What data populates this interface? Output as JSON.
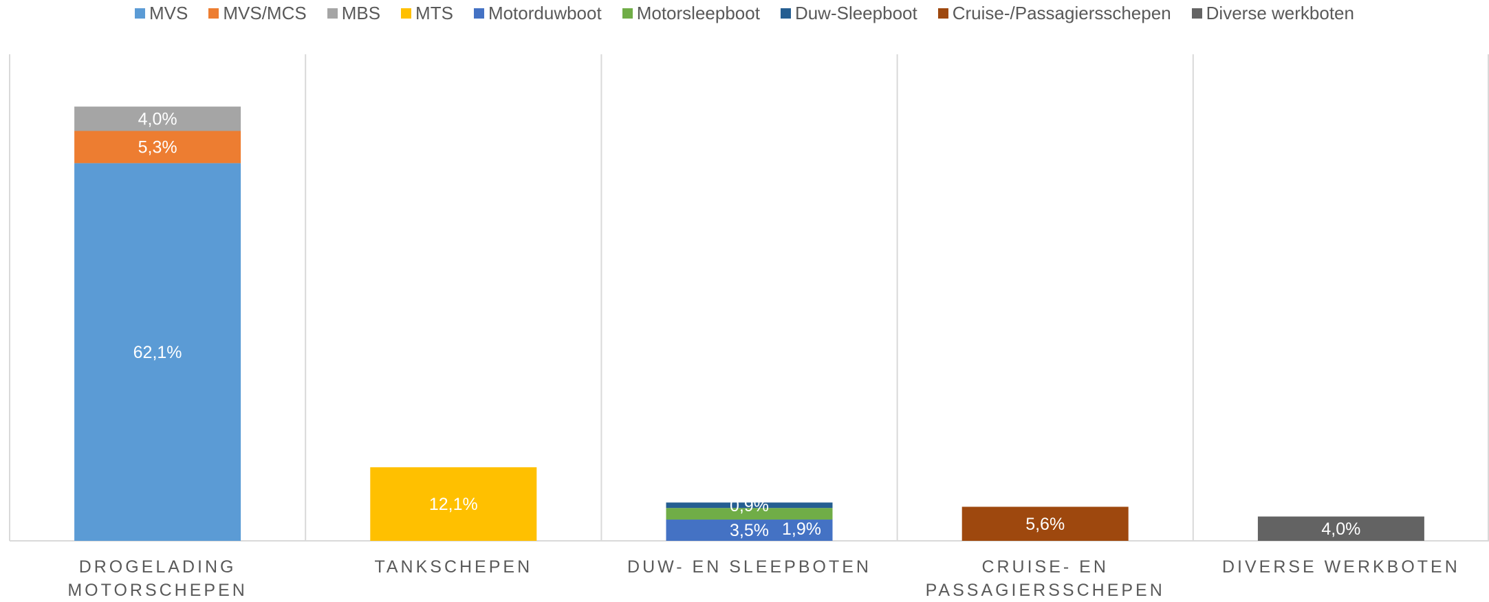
{
  "chart_data": {
    "type": "stacked_bar",
    "categories": [
      "DROGELADING MOTORSCHEPEN",
      "TANKSCHEPEN",
      "DUW- EN SLEEPBOTEN",
      "CRUISE- EN PASSAGIERSSCHEPEN",
      "DIVERSE WERKBOTEN"
    ],
    "ylim": [
      0,
      80
    ],
    "series": [
      {
        "name": "MVS",
        "color": "#5b9bd5",
        "values": [
          62.1,
          null,
          null,
          null,
          null
        ],
        "value_labels": [
          "62,1%",
          null,
          null,
          null,
          null
        ]
      },
      {
        "name": "MVS/MCS",
        "color": "#ed7d31",
        "values": [
          5.3,
          null,
          null,
          null,
          null
        ],
        "value_labels": [
          "5,3%",
          null,
          null,
          null,
          null
        ]
      },
      {
        "name": "MBS",
        "color": "#a5a5a5",
        "values": [
          4.0,
          null,
          null,
          null,
          null
        ],
        "value_labels": [
          "4,0%",
          null,
          null,
          null,
          null
        ]
      },
      {
        "name": "MTS",
        "color": "#ffc000",
        "values": [
          null,
          12.1,
          null,
          null,
          null
        ],
        "value_labels": [
          null,
          "12,1%",
          null,
          null,
          null
        ]
      },
      {
        "name": "Motorduwboot",
        "color": "#4472c4",
        "values": [
          null,
          null,
          3.5,
          null,
          null
        ],
        "value_labels": [
          null,
          null,
          "3,5%",
          null,
          null
        ]
      },
      {
        "name": "Motorsleepboot",
        "color": "#70ad47",
        "values": [
          null,
          null,
          1.9,
          null,
          null
        ],
        "value_labels": [
          null,
          null,
          "1,9%",
          null,
          null
        ]
      },
      {
        "name": "Duw-Sleepboot",
        "color": "#255e91",
        "values": [
          null,
          null,
          0.9,
          null,
          null
        ],
        "value_labels": [
          null,
          null,
          "0,9%",
          null,
          null
        ]
      },
      {
        "name": "Cruise-/Passagiersschepen",
        "color": "#9e480e",
        "values": [
          null,
          null,
          null,
          5.6,
          null
        ],
        "value_labels": [
          null,
          null,
          null,
          "5,6%",
          null
        ]
      },
      {
        "name": "Diverse werkboten",
        "color": "#636363",
        "values": [
          null,
          null,
          null,
          null,
          4.0
        ],
        "value_labels": [
          null,
          null,
          null,
          null,
          "4,0%"
        ]
      }
    ]
  }
}
